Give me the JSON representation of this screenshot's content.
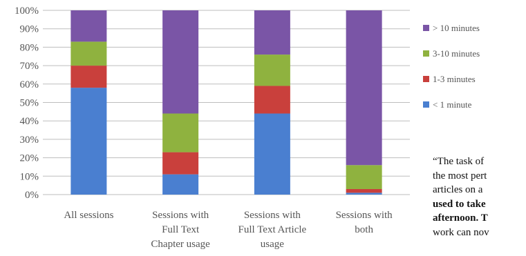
{
  "chart_data": {
    "type": "bar",
    "stacked": true,
    "percent": true,
    "categories": [
      [
        "All sessions"
      ],
      [
        "Sessions with",
        "Full Text",
        "Chapter usage"
      ],
      [
        "Sessions with",
        "Full Text Article",
        "usage"
      ],
      [
        "Sessions with",
        "both"
      ]
    ],
    "series": [
      {
        "name": "< 1 minute",
        "color": "#4a7fd0",
        "values": [
          58,
          11,
          44,
          1
        ]
      },
      {
        "name": "1-3 minutes",
        "color": "#c9403c",
        "values": [
          12,
          12,
          15,
          2
        ]
      },
      {
        "name": "3-10 minutes",
        "color": "#8fb23f",
        "values": [
          13,
          21,
          17,
          13
        ]
      },
      {
        "name": "> 10 minutes",
        "color": "#7a55a6",
        "values": [
          17,
          56,
          24,
          84
        ]
      }
    ],
    "ylim": [
      0,
      100
    ],
    "yticks": [
      "0%",
      "10%",
      "20%",
      "30%",
      "40%",
      "50%",
      "60%",
      "70%",
      "80%",
      "90%",
      "100%"
    ],
    "grid": true,
    "legend_position": "right"
  },
  "quote_lines": [
    {
      "text": "“The task of",
      "bold": false
    },
    {
      "text": "the most pert",
      "bold": false
    },
    {
      "text": "articles on a",
      "bold": false
    },
    {
      "text": "used to take",
      "bold": true
    },
    {
      "text": "afternoon. T",
      "bold": true
    },
    {
      "text": "work can nov",
      "bold": false
    }
  ]
}
